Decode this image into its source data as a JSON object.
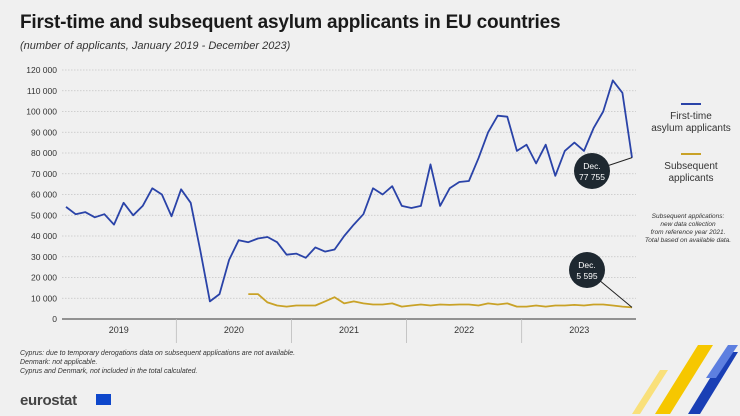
{
  "page": {
    "title": "First-time and subsequent asylum applicants in EU countries",
    "subtitle": "(number of applicants, January 2019 - December 2023)"
  },
  "chart_data": {
    "type": "line",
    "title": "First-time and subsequent asylum applicants in EU countries",
    "ylim": [
      0,
      120000
    ],
    "yticks": [
      0,
      10000,
      20000,
      30000,
      40000,
      50000,
      60000,
      70000,
      80000,
      90000,
      100000,
      110000,
      120000
    ],
    "ytick_labels": [
      "0",
      "10 000",
      "20 000",
      "30 000",
      "40 000",
      "50 000",
      "60 000",
      "70 000",
      "80 000",
      "90 000",
      "100 000",
      "110 000",
      "120 000"
    ],
    "x_range_months": [
      1,
      60
    ],
    "year_labels": [
      "2019",
      "2020",
      "2021",
      "2022",
      "2023"
    ],
    "grid": true,
    "legend_position": "right",
    "series": [
      {
        "name": "First-time asylum applicants",
        "color": "#2a43a8",
        "start_month": 1,
        "values": [
          54000,
          50500,
          51500,
          49000,
          50500,
          45500,
          56000,
          50000,
          54500,
          63000,
          60000,
          49500,
          62500,
          56000,
          33000,
          8500,
          12000,
          28500,
          38000,
          37000,
          38800,
          39500,
          37000,
          31000,
          31500,
          29500,
          34500,
          32500,
          33500,
          40000,
          45500,
          50500,
          63000,
          60000,
          64000,
          54500,
          53500,
          54500,
          74500,
          54500,
          63000,
          66000,
          66500,
          77500,
          90000,
          98000,
          97500,
          81000,
          84000,
          75000,
          84000,
          69000,
          81000,
          85000,
          81000,
          92000,
          100000,
          115000,
          109000,
          77755
        ]
      },
      {
        "name": "Subsequent applicants",
        "color": "#c9a227",
        "start_month": 20,
        "values": [
          12000,
          12000,
          8000,
          6500,
          6000,
          6500,
          6500,
          6500,
          8500,
          10500,
          7500,
          8500,
          7500,
          7000,
          7000,
          7500,
          6000,
          6500,
          7000,
          6500,
          7000,
          6800,
          7000,
          7000,
          6500,
          7500,
          7000,
          7500,
          6000,
          6000,
          6500,
          6000,
          6500,
          6500,
          6800,
          6500,
          7000,
          7000,
          6500,
          6000,
          5595
        ]
      }
    ],
    "callouts": [
      {
        "text": "Dec.",
        "value_text": "77 755"
      },
      {
        "text": "Dec.",
        "value_text": "5 595"
      }
    ]
  },
  "legend": {
    "first_time_line1": "First-time",
    "first_time_line2": "asylum applicants",
    "subsequent_line1": "Subsequent",
    "subsequent_line2": "applicants"
  },
  "note": {
    "line1": "Subsequent applications:",
    "line2": "new data collection",
    "line3": "from reference year 2021.",
    "line4": "Total based on available data."
  },
  "footnotes": [
    "Cyprus: due to temporary derogations data on subsequent applications are not available.",
    "Denmark: not applicable.",
    "Cyprus and Denmark, not included in the total calculated."
  ],
  "branding": {
    "logo": "eurostat",
    "flag_color": "#0e47cb",
    "stripe_yellow": "#f6c700",
    "stripe_blue": "#1a3fb5"
  }
}
